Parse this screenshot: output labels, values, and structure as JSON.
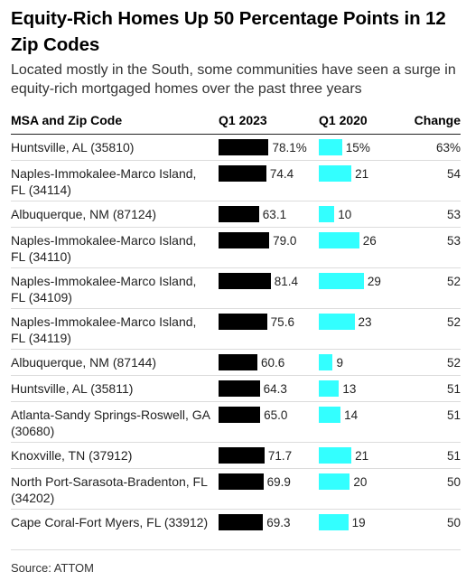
{
  "title": "Equity-Rich Homes Up 50 Percentage Points in 12 Zip Codes",
  "subtitle": "Located mostly in the South, some communities have seen a surge in equity-rich mortgaged homes over the past three years",
  "source": "Source: ATTOM",
  "colors": {
    "q1_2023_bar": "#000000",
    "q1_2020_bar": "#33ffff"
  },
  "chart_data": {
    "type": "table",
    "columns": [
      "MSA and Zip Code",
      "Q1 2023",
      "Q1 2020",
      "Change"
    ],
    "rows": [
      {
        "name": "Huntsville, AL (35810)",
        "q1_2023": 78.1,
        "q1_2023_label": "78.1%",
        "q1_2020": 15,
        "q1_2020_label": "15%",
        "change": "63%"
      },
      {
        "name": "Naples-Immokalee-Marco Island, FL (34114)",
        "q1_2023": 74.4,
        "q1_2023_label": "74.4",
        "q1_2020": 21,
        "q1_2020_label": "21",
        "change": "54"
      },
      {
        "name": "Albuquerque, NM (87124)",
        "q1_2023": 63.1,
        "q1_2023_label": "63.1",
        "q1_2020": 10,
        "q1_2020_label": "10",
        "change": "53"
      },
      {
        "name": "Naples-Immokalee-Marco Island, FL (34110)",
        "q1_2023": 79.0,
        "q1_2023_label": "79.0",
        "q1_2020": 26,
        "q1_2020_label": "26",
        "change": "53"
      },
      {
        "name": "Naples-Immokalee-Marco Island, FL (34109)",
        "q1_2023": 81.4,
        "q1_2023_label": "81.4",
        "q1_2020": 29,
        "q1_2020_label": "29",
        "change": "52"
      },
      {
        "name": "Naples-Immokalee-Marco Island, FL (34119)",
        "q1_2023": 75.6,
        "q1_2023_label": "75.6",
        "q1_2020": 23,
        "q1_2020_label": "23",
        "change": "52"
      },
      {
        "name": "Albuquerque, NM (87144)",
        "q1_2023": 60.6,
        "q1_2023_label": "60.6",
        "q1_2020": 9,
        "q1_2020_label": "9",
        "change": "52"
      },
      {
        "name": "Huntsville, AL (35811)",
        "q1_2023": 64.3,
        "q1_2023_label": "64.3",
        "q1_2020": 13,
        "q1_2020_label": "13",
        "change": "51"
      },
      {
        "name": "Atlanta-Sandy Springs-Roswell, GA (30680)",
        "q1_2023": 65.0,
        "q1_2023_label": "65.0",
        "q1_2020": 14,
        "q1_2020_label": "14",
        "change": "51"
      },
      {
        "name": "Knoxville, TN (37912)",
        "q1_2023": 71.7,
        "q1_2023_label": "71.7",
        "q1_2020": 21,
        "q1_2020_label": "21",
        "change": "51"
      },
      {
        "name": "North Port-Sarasota-Bradenton, FL (34202)",
        "q1_2023": 69.9,
        "q1_2023_label": "69.9",
        "q1_2020": 20,
        "q1_2020_label": "20",
        "change": "50"
      },
      {
        "name": "Cape Coral-Fort Myers, FL (33912)",
        "q1_2023": 69.3,
        "q1_2023_label": "69.3",
        "q1_2020": 19,
        "q1_2020_label": "19",
        "change": "50"
      }
    ]
  }
}
